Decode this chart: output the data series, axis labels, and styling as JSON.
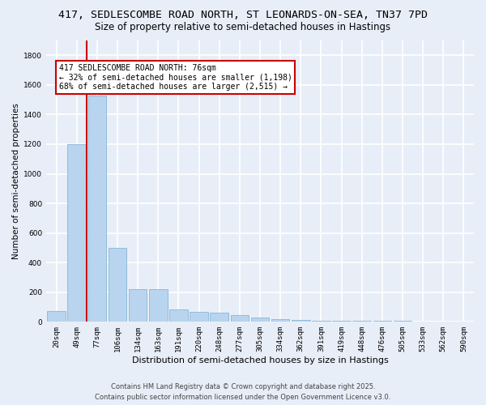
{
  "title_line1": "417, SEDLESCOMBE ROAD NORTH, ST LEONARDS-ON-SEA, TN37 7PD",
  "title_line2": "Size of property relative to semi-detached houses in Hastings",
  "xlabel": "Distribution of semi-detached houses by size in Hastings",
  "ylabel": "Number of semi-detached properties",
  "categories": [
    "20sqm",
    "49sqm",
    "77sqm",
    "106sqm",
    "134sqm",
    "163sqm",
    "191sqm",
    "220sqm",
    "248sqm",
    "277sqm",
    "305sqm",
    "334sqm",
    "362sqm",
    "391sqm",
    "419sqm",
    "448sqm",
    "476sqm",
    "505sqm",
    "533sqm",
    "562sqm",
    "590sqm"
  ],
  "values": [
    75,
    1200,
    1530,
    500,
    220,
    220,
    85,
    65,
    60,
    48,
    30,
    20,
    15,
    10,
    8,
    7,
    6,
    5,
    4,
    3,
    2
  ],
  "bar_color": "#b8d4ee",
  "bar_edge_color": "#7aaed0",
  "vline_color": "#cc0000",
  "vline_x_index": 2,
  "annotation_text": "417 SEDLESCOMBE ROAD NORTH: 76sqm\n← 32% of semi-detached houses are smaller (1,198)\n68% of semi-detached houses are larger (2,515) →",
  "annotation_box_color": "#ffffff",
  "annotation_box_edge": "#cc0000",
  "ylim": [
    0,
    1900
  ],
  "yticks": [
    0,
    200,
    400,
    600,
    800,
    1000,
    1200,
    1400,
    1600,
    1800
  ],
  "footer_line1": "Contains HM Land Registry data © Crown copyright and database right 2025.",
  "footer_line2": "Contains public sector information licensed under the Open Government Licence v3.0.",
  "bg_color": "#e8eef8",
  "plot_bg_color": "#e8eef8",
  "grid_color": "#ffffff",
  "title_fontsize": 9.5,
  "subtitle_fontsize": 8.5,
  "axis_label_fontsize": 7.5,
  "tick_fontsize": 6.5,
  "annotation_fontsize": 7,
  "footer_fontsize": 6
}
